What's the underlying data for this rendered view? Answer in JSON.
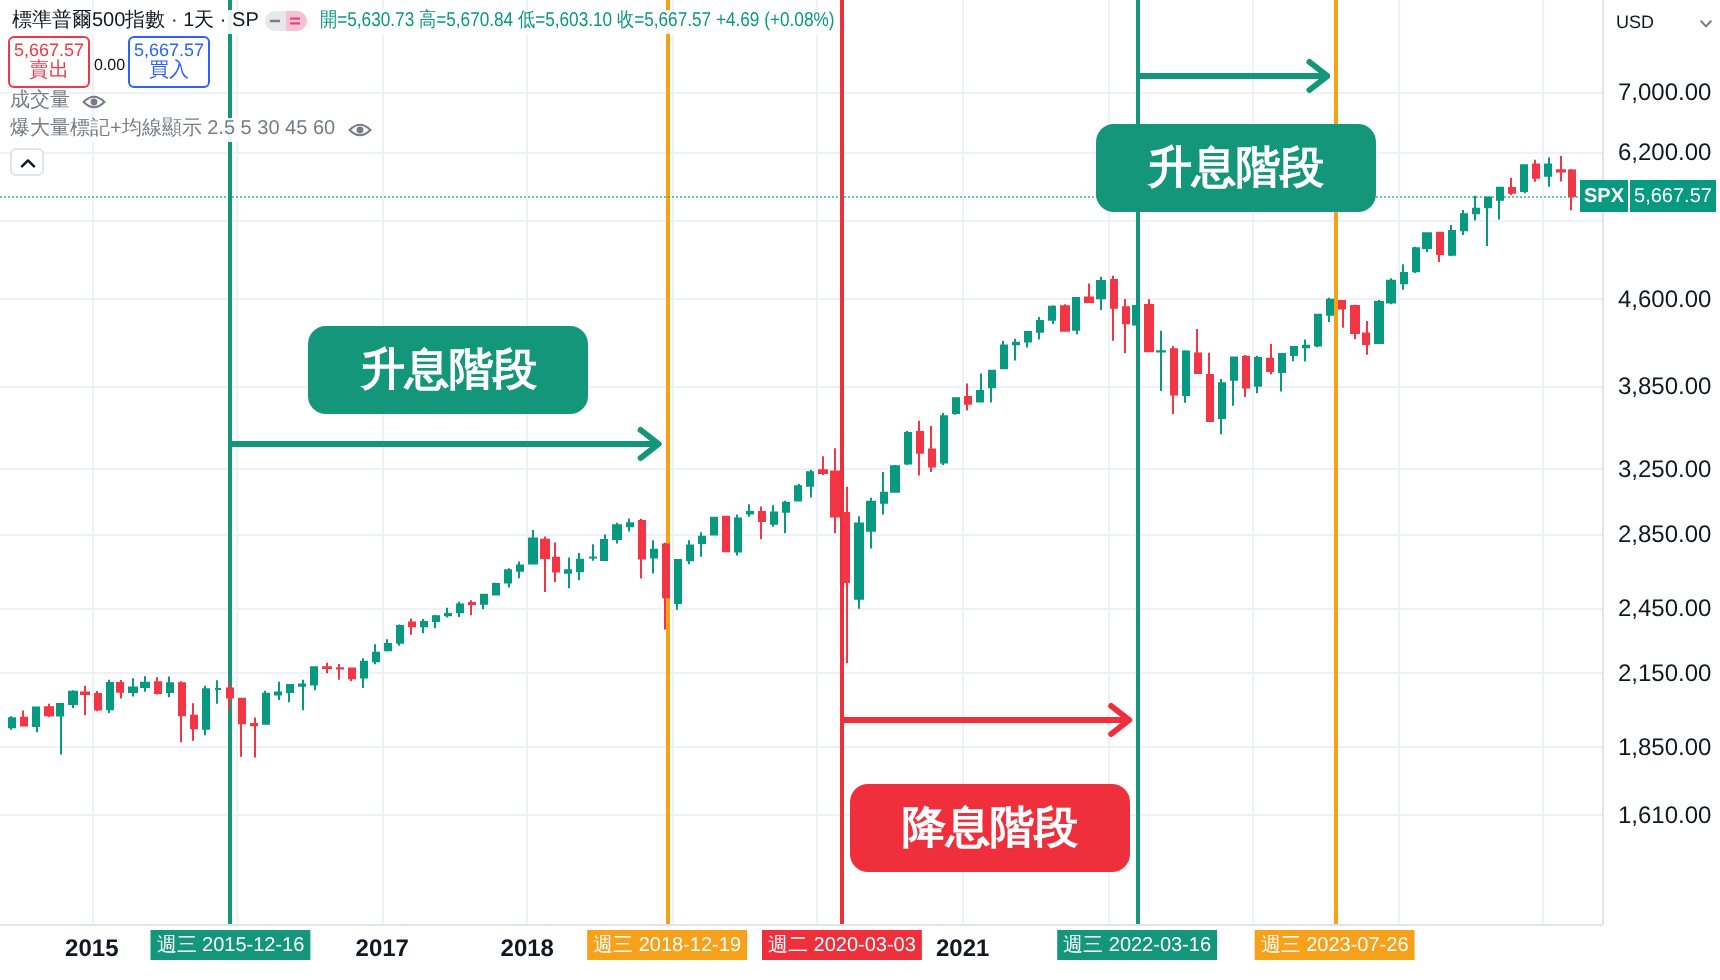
{
  "chart_data": {
    "type": "candlestick",
    "title": "標準普爾500指數 · 1天 · SP",
    "subtitle": "開=5,630.73 高=5,670.84 低=5,603.10 收=5,667.57 +4.69 (+0.08%)",
    "ylabel": "USD",
    "annotations": [
      "升息階段",
      "升息階段",
      "降息階段",
      "5,667.57\n賣出",
      "0.00",
      "5,667.57\n買入",
      "成交量",
      "爆大量標記+均線顯示 2.5 5 30 45 60"
    ],
    "x": [
      "2014-06-15",
      "2014-07-15",
      "2014-08-15",
      "2014-09-15",
      "2014-10-15",
      "2014-11-15",
      "2014-12-15",
      "2015-01-15",
      "2015-02-15",
      "2015-03-15",
      "2015-04-15",
      "2015-05-15",
      "2015-06-15",
      "2015-07-15",
      "2015-08-15",
      "2015-09-15",
      "2015-10-15",
      "2015-11-15",
      "2015-12-15",
      "2016-01-15",
      "2016-02-15",
      "2016-03-15",
      "2016-04-15",
      "2016-05-15",
      "2016-06-15",
      "2016-07-15",
      "2016-08-15",
      "2016-09-15",
      "2016-10-15",
      "2016-11-15",
      "2016-12-15",
      "2017-01-15",
      "2017-02-15",
      "2017-03-15",
      "2017-04-15",
      "2017-05-15",
      "2017-06-15",
      "2017-07-15",
      "2017-08-15",
      "2017-09-15",
      "2017-10-15",
      "2017-11-15",
      "2017-12-15",
      "2018-01-15",
      "2018-02-15",
      "2018-03-15",
      "2018-04-15",
      "2018-05-15",
      "2018-06-15",
      "2018-07-15",
      "2018-08-15",
      "2018-09-15",
      "2018-10-15",
      "2018-11-15",
      "2018-12-15",
      "2019-01-15",
      "2019-02-15",
      "2019-03-15",
      "2019-04-15",
      "2019-05-15",
      "2019-06-15",
      "2019-07-15",
      "2019-08-15",
      "2019-09-15",
      "2019-10-15",
      "2019-11-15",
      "2019-12-15",
      "2020-01-15",
      "2020-02-15",
      "2020-03-15",
      "2020-04-15",
      "2020-05-15",
      "2020-06-15",
      "2020-07-15",
      "2020-08-15",
      "2020-09-15",
      "2020-10-15",
      "2020-11-15",
      "2020-12-15",
      "2021-01-15",
      "2021-02-15",
      "2021-03-15",
      "2021-04-15",
      "2021-05-15",
      "2021-06-15",
      "2021-07-15",
      "2021-08-15",
      "2021-09-15",
      "2021-10-15",
      "2021-11-15",
      "2021-12-15",
      "2022-01-15",
      "2022-02-15",
      "2022-03-15",
      "2022-04-15",
      "2022-05-15",
      "2022-06-15",
      "2022-07-15",
      "2022-08-15",
      "2022-09-15",
      "2022-10-15",
      "2022-11-15",
      "2022-12-15",
      "2023-01-15",
      "2023-02-15",
      "2023-03-15",
      "2023-04-15",
      "2023-05-15",
      "2023-06-15",
      "2023-07-15",
      "2023-08-15",
      "2023-09-15",
      "2023-10-15",
      "2023-11-15",
      "2023-12-15",
      "2024-01-15",
      "2024-02-15",
      "2024-03-15",
      "2024-04-15",
      "2024-05-15",
      "2024-06-15",
      "2024-07-15",
      "2024-08-15",
      "2024-09-15",
      "2024-10-15",
      "2024-11-15",
      "2024-12-15",
      "2025-01-15",
      "2025-02-15",
      "2025-03-15"
    ],
    "ohlc": [
      [
        1924,
        1968,
        1915,
        1960
      ],
      [
        1962,
        1991,
        1930,
        1931
      ],
      [
        1929,
        2005,
        1905,
        2003
      ],
      [
        2004,
        2019,
        1965,
        1972
      ],
      [
        1971,
        2019,
        1821,
        2018
      ],
      [
        2018,
        2075,
        2001,
        2068
      ],
      [
        2065,
        2093,
        1973,
        2059
      ],
      [
        2059,
        2072,
        1988,
        1995
      ],
      [
        1996,
        2120,
        1981,
        2105
      ],
      [
        2105,
        2118,
        2040,
        2068
      ],
      [
        2067,
        2126,
        2048,
        2086
      ],
      [
        2088,
        2135,
        2068,
        2107
      ],
      [
        2109,
        2130,
        2057,
        2063
      ],
      [
        2067,
        2133,
        2045,
        2104
      ],
      [
        2104,
        2113,
        1867,
        1972
      ],
      [
        1970,
        2021,
        1872,
        1920
      ],
      [
        1919,
        2094,
        1893,
        2079
      ],
      [
        2080,
        2117,
        2019,
        2080
      ],
      [
        2082,
        2104,
        1993,
        2044
      ],
      [
        2039,
        2039,
        1812,
        1940
      ],
      [
        1937,
        1963,
        1810,
        1932
      ],
      [
        1938,
        2073,
        1937,
        2060
      ],
      [
        2057,
        2111,
        2034,
        2065
      ],
      [
        2067,
        2100,
        2025,
        2097
      ],
      [
        2094,
        2120,
        1992,
        2099
      ],
      [
        2099,
        2177,
        2075,
        2174
      ],
      [
        2174,
        2194,
        2148,
        2171
      ],
      [
        2170,
        2188,
        2120,
        2168
      ],
      [
        2169,
        2170,
        2114,
        2126
      ],
      [
        2129,
        2214,
        2084,
        2199
      ],
      [
        2201,
        2278,
        2187,
        2239
      ],
      [
        2251,
        2301,
        2245,
        2279
      ],
      [
        2285,
        2371,
        2271,
        2364
      ],
      [
        2381,
        2401,
        2322,
        2363
      ],
      [
        2363,
        2398,
        2329,
        2384
      ],
      [
        2388,
        2418,
        2353,
        2412
      ],
      [
        2416,
        2454,
        2405,
        2423
      ],
      [
        2431,
        2484,
        2408,
        2470
      ],
      [
        2477,
        2491,
        2417,
        2472
      ],
      [
        2474,
        2520,
        2446,
        2519
      ],
      [
        2521,
        2582,
        2520,
        2575
      ],
      [
        2583,
        2658,
        2557,
        2648
      ],
      [
        2645,
        2695,
        2605,
        2674
      ],
      [
        2684,
        2873,
        2683,
        2824
      ],
      [
        2817,
        2836,
        2533,
        2714
      ],
      [
        2716,
        2801,
        2585,
        2641
      ],
      [
        2634,
        2718,
        2553,
        2648
      ],
      [
        2643,
        2742,
        2594,
        2705
      ],
      [
        2718,
        2791,
        2699,
        2718
      ],
      [
        2704,
        2848,
        2699,
        2816
      ],
      [
        2822,
        2917,
        2796,
        2902
      ],
      [
        2896,
        2941,
        2865,
        2914
      ],
      [
        2926,
        2940,
        2604,
        2712
      ],
      [
        2718,
        2815,
        2631,
        2760
      ],
      [
        2790,
        2800,
        2347,
        2507
      ],
      [
        2477,
        2708,
        2444,
        2704
      ],
      [
        2702,
        2814,
        2681,
        2784
      ],
      [
        2798,
        2860,
        2722,
        2834
      ],
      [
        2848,
        2949,
        2848,
        2946
      ],
      [
        2952,
        2954,
        2750,
        2752
      ],
      [
        2751,
        2965,
        2728,
        2942
      ],
      [
        2971,
        3028,
        2952,
        2980
      ],
      [
        2980,
        3014,
        2822,
        2926
      ],
      [
        2910,
        3022,
        2892,
        2977
      ],
      [
        2983,
        3050,
        2855,
        3038
      ],
      [
        3051,
        3155,
        3050,
        3141
      ],
      [
        3144,
        3248,
        3070,
        3231
      ],
      [
        3244,
        3338,
        3214,
        3226
      ],
      [
        3236,
        3394,
        2855,
        2954
      ],
      [
        2974,
        3137,
        2192,
        2585
      ],
      [
        2499,
        2955,
        2448,
        2912
      ],
      [
        2869,
        3068,
        2767,
        3044
      ],
      [
        3038,
        3233,
        2966,
        3100
      ],
      [
        3106,
        3280,
        3102,
        3271
      ],
      [
        3289,
        3515,
        3280,
        3500
      ],
      [
        3508,
        3588,
        3210,
        3363
      ],
      [
        3385,
        3550,
        3234,
        3270
      ],
      [
        3296,
        3646,
        3280,
        3622
      ],
      [
        3645,
        3760,
        3633,
        3756
      ],
      [
        3765,
        3871,
        3663,
        3714
      ],
      [
        3732,
        3951,
        3725,
        3811
      ],
      [
        3842,
        3981,
        3723,
        3973
      ],
      [
        3993,
        4219,
        3993,
        4181
      ],
      [
        4191,
        4239,
        4056,
        4204
      ],
      [
        4216,
        4302,
        4165,
        4298
      ],
      [
        4300,
        4430,
        4233,
        4395
      ],
      [
        4406,
        4537,
        4368,
        4523
      ],
      [
        4529,
        4546,
        4306,
        4308
      ],
      [
        4317,
        4609,
        4279,
        4605
      ],
      [
        4610,
        4744,
        4560,
        4567
      ],
      [
        4602,
        4808,
        4495,
        4766
      ],
      [
        4778,
        4819,
        4223,
        4516
      ],
      [
        4520,
        4596,
        4115,
        4374
      ],
      [
        4364,
        4638,
        4157,
        4530
      ],
      [
        4540,
        4594,
        4124,
        4132
      ],
      [
        4131,
        4308,
        3811,
        4132
      ],
      [
        4150,
        4178,
        3637,
        3785
      ],
      [
        3782,
        4141,
        3722,
        4130
      ],
      [
        4113,
        4325,
        3955,
        3955
      ],
      [
        3937,
        4120,
        3585,
        3586
      ],
      [
        3609,
        3906,
        3492,
        3872
      ],
      [
        3901,
        4080,
        3699,
        4080
      ],
      [
        4087,
        4101,
        3765,
        3840
      ],
      [
        3853,
        4095,
        3794,
        4077
      ],
      [
        4070,
        4195,
        3943,
        3970
      ],
      [
        3963,
        4111,
        3809,
        4109
      ],
      [
        4102,
        4170,
        4049,
        4169
      ],
      [
        4166,
        4232,
        4048,
        4180
      ],
      [
        4181,
        4458,
        4167,
        4450
      ],
      [
        4451,
        4608,
        4385,
        4589
      ],
      [
        4578,
        4584,
        4335,
        4508
      ],
      [
        4530,
        4542,
        4238,
        4288
      ],
      [
        4284,
        4394,
        4104,
        4194
      ],
      [
        4202,
        4587,
        4197,
        4568
      ],
      [
        4564,
        4794,
        4547,
        4770
      ],
      [
        4745,
        4932,
        4683,
        4846
      ],
      [
        4862,
        5111,
        4845,
        5096
      ],
      [
        5098,
        5265,
        5057,
        5254
      ],
      [
        5258,
        5264,
        4954,
        5036
      ],
      [
        5029,
        5342,
        5012,
        5278
      ],
      [
        5284,
        5506,
        5235,
        5460
      ],
      [
        5471,
        5670,
        5390,
        5522
      ],
      [
        5538,
        5651,
        5120,
        5648
      ],
      [
        5624,
        5768,
        5403,
        5762
      ],
      [
        5758,
        5878,
        5675,
        5705
      ],
      [
        5723,
        6045,
        5697,
        6032
      ],
      [
        6041,
        6100,
        5833,
        5882
      ],
      [
        5904,
        6128,
        5774,
        6041
      ],
      [
        5970,
        6147,
        5837,
        5955
      ],
      [
        5968,
        5986,
        5505,
        5667.57
      ]
    ],
    "colors": [
      "#089981",
      "#f23645",
      "#089981",
      "#f23645",
      "#089981",
      "#089981",
      "#f23645",
      "#f23645",
      "#089981",
      "#f23645",
      "#089981",
      "#089981",
      "#f23645",
      "#089981",
      "#f23645",
      "#f23645",
      "#089981",
      "#089981",
      "#f23645",
      "#f23645",
      "#f23645",
      "#089981",
      "#089981",
      "#089981",
      "#089981",
      "#089981",
      "#f23645",
      "#f23645",
      "#f23645",
      "#089981",
      "#089981",
      "#089981",
      "#089981",
      "#f23645",
      "#089981",
      "#089981",
      "#089981",
      "#089981",
      "#f23645",
      "#089981",
      "#089981",
      "#089981",
      "#089981",
      "#089981",
      "#f23645",
      "#f23645",
      "#089981",
      "#089981",
      "#089981",
      "#089981",
      "#089981",
      "#089981",
      "#f23645",
      "#089981",
      "#f23645",
      "#089981",
      "#089981",
      "#089981",
      "#089981",
      "#f23645",
      "#089981",
      "#089981",
      "#f23645",
      "#089981",
      "#089981",
      "#089981",
      "#089981",
      "#f23645",
      "#f23645",
      "#f23645",
      "#089981",
      "#089981",
      "#089981",
      "#089981",
      "#089981",
      "#f23645",
      "#f23645",
      "#089981",
      "#089981",
      "#f23645",
      "#089981",
      "#089981",
      "#089981",
      "#089981",
      "#089981",
      "#089981",
      "#089981",
      "#f23645",
      "#089981",
      "#f23645",
      "#089981",
      "#f23645",
      "#f23645",
      "#089981",
      "#f23645",
      "#089981",
      "#f23645",
      "#089981",
      "#f23645",
      "#f23645",
      "#089981",
      "#089981",
      "#f23645",
      "#089981",
      "#f23645",
      "#089981",
      "#089981",
      "#089981",
      "#089981",
      "#089981",
      "#f23645",
      "#f23645",
      "#f23645",
      "#089981",
      "#089981",
      "#089981",
      "#089981",
      "#089981",
      "#f23645",
      "#089981",
      "#089981",
      "#089981",
      "#089981",
      "#089981",
      "#f23645",
      "#089981",
      "#f23645",
      "#089981",
      "#f23645",
      "#f23645"
    ],
    "xlim": [
      "2014-05-15",
      "2025-05-29"
    ],
    "xticks": [
      "2015",
      {
        "value": "2016",
        "label": null
      },
      "2017",
      "2018",
      {
        "value": "2019",
        "label": null
      },
      {
        "value": "2020",
        "label": null
      },
      "2021",
      {
        "value": "2022",
        "label": null
      },
      {
        "value": "2023",
        "label": null
      },
      {
        "value": "2024",
        "label": null
      },
      {
        "value": "2025",
        "label": null
      }
    ],
    "ylim": [
      1290,
      8440
    ],
    "yticks": [
      {
        "value": 1610,
        "label": "1,610.00"
      },
      {
        "value": 1850,
        "label": "1,850.00"
      },
      {
        "value": 2150,
        "label": "2,150.00"
      },
      {
        "value": 2450,
        "label": "2,450.00"
      },
      {
        "value": 2850,
        "label": "2,850.00"
      },
      {
        "value": 3250,
        "label": "3,250.00"
      },
      {
        "value": 3850,
        "label": "3,850.00"
      },
      {
        "value": 4600,
        "label": "4,600.00"
      },
      {
        "value": 5400,
        "label": null
      },
      {
        "value": 6200,
        "label": "6,200.00"
      },
      {
        "value": 7000,
        "label": "7,000.00"
      }
    ],
    "log": true,
    "grid": true,
    "ref_lines": [
      {
        "axis": "x",
        "value": "2015-12-16",
        "label": "週三 2015-12-16",
        "color": "#14967b"
      },
      {
        "axis": "x",
        "value": "2018-12-19",
        "label": "週三 2018-12-19",
        "color": "#f7a11a"
      },
      {
        "axis": "x",
        "value": "2020-03-03",
        "label": "週二 2020-03-03",
        "color": "#ef2f3c"
      },
      {
        "axis": "x",
        "value": "2022-03-16",
        "label": "週三 2022-03-16",
        "color": "#14967b"
      },
      {
        "axis": "x",
        "value": "2023-07-26",
        "label": "週三 2023-07-26",
        "color": "#f7a11a"
      },
      {
        "axis": "y",
        "value": 5667.57,
        "label": "SPX 5,667.57",
        "color": "#089981",
        "line_style": "dotted"
      }
    ]
  }
}
